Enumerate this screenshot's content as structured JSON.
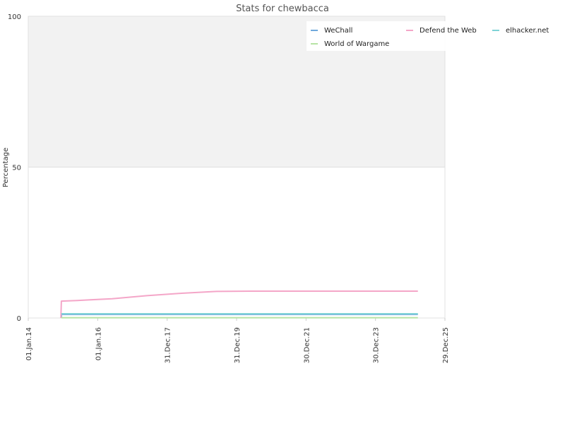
{
  "chart_data": {
    "type": "line",
    "title": "Stats for chewbacca",
    "xlabel": "",
    "ylabel": "Percentage",
    "ylim": [
      0,
      100
    ],
    "xlim": [
      "2014-01-01",
      "2025-12-29"
    ],
    "yticks": [
      "0",
      "50",
      "100"
    ],
    "xticks": [
      {
        "date": "2014-01-01",
        "label": "01.Jan.14"
      },
      {
        "date": "2016-01-01",
        "label": "01.Jan.16"
      },
      {
        "date": "2017-12-31",
        "label": "31.Dec.17"
      },
      {
        "date": "2019-12-31",
        "label": "31.Dec.19"
      },
      {
        "date": "2021-12-30",
        "label": "30.Dec.21"
      },
      {
        "date": "2023-12-30",
        "label": "30.Dec.23"
      },
      {
        "date": "2025-12-29",
        "label": "29.Dec.25"
      }
    ],
    "grid": true,
    "background_bands": [
      {
        "from": 50,
        "to": 100,
        "color": "#f2f2f2"
      }
    ],
    "legend_position": "top-right",
    "series": [
      {
        "name": "WeChall",
        "color": "#6fa8dc",
        "points": [
          [
            "2014-12-15",
            0
          ],
          [
            "2014-12-15",
            1.2
          ],
          [
            "2025-03-20",
            1.2
          ]
        ]
      },
      {
        "name": "Defend the Web",
        "color": "#f4a6c8",
        "points": [
          [
            "2014-12-10",
            0
          ],
          [
            "2014-12-15",
            5.6
          ],
          [
            "2015-06-01",
            5.8
          ],
          [
            "2016-06-01",
            6.4
          ],
          [
            "2017-06-01",
            7.4
          ],
          [
            "2018-06-01",
            8.2
          ],
          [
            "2019-06-01",
            8.8
          ],
          [
            "2020-06-01",
            8.9
          ],
          [
            "2025-03-20",
            8.9
          ]
        ]
      },
      {
        "name": "elhacker.net",
        "color": "#7fd3d6",
        "points": [
          [
            "2014-12-15",
            1.4
          ],
          [
            "2025-03-20",
            1.4
          ]
        ]
      },
      {
        "name": "World of Wargame",
        "color": "#b6e3a4",
        "points": [
          [
            "2014-12-15",
            0.1
          ],
          [
            "2025-03-20",
            0.1
          ]
        ]
      }
    ]
  }
}
